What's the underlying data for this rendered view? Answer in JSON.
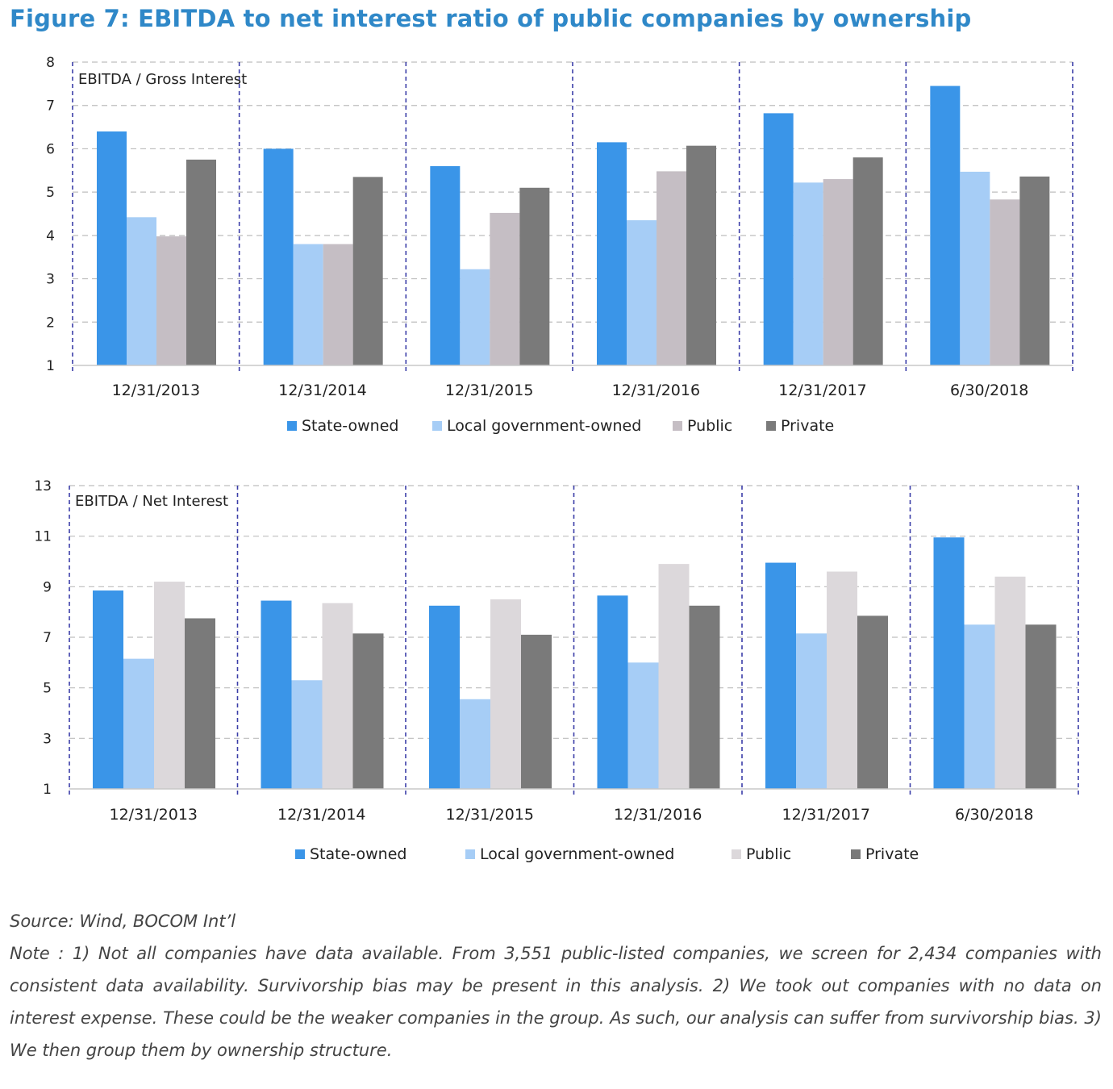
{
  "figure": {
    "title": "Figure 7: EBITDA to net interest ratio of public companies by ownership"
  },
  "colors": {
    "state_owned": "#3a95e8",
    "local_gov_owned": "#a6cdf6",
    "public_top": "#c5bec4",
    "public_bottom": "#dcd8db",
    "private": "#7a7a7a",
    "title": "#2f88c8",
    "divider": "#3b3ea8",
    "grid": "#bdbdbd"
  },
  "chart_data": [
    {
      "type": "bar",
      "inner_label": "EBITDA / Gross Interest",
      "categories": [
        "12/31/2013",
        "12/31/2014",
        "12/31/2015",
        "12/31/2016",
        "12/31/2017",
        "6/30/2018"
      ],
      "series": [
        {
          "name": "State-owned",
          "values": [
            6.4,
            6.0,
            5.6,
            6.15,
            6.82,
            7.45
          ]
        },
        {
          "name": "Local government-owned",
          "values": [
            4.42,
            3.8,
            3.22,
            4.35,
            5.22,
            5.47
          ]
        },
        {
          "name": "Public",
          "values": [
            3.98,
            3.8,
            4.52,
            5.48,
            5.3,
            4.83
          ]
        },
        {
          "name": "Private",
          "values": [
            5.75,
            5.35,
            5.1,
            6.07,
            5.8,
            5.36
          ]
        }
      ],
      "ylim": [
        1,
        8
      ],
      "yticks": [
        1,
        2,
        3,
        4,
        5,
        6,
        7,
        8
      ],
      "grid": true,
      "legend": "bottom"
    },
    {
      "type": "bar",
      "inner_label": "EBITDA / Net Interest",
      "categories": [
        "12/31/2013",
        "12/31/2014",
        "12/31/2015",
        "12/31/2016",
        "12/31/2017",
        "6/30/2018"
      ],
      "series": [
        {
          "name": "State-owned",
          "values": [
            8.85,
            8.45,
            8.25,
            8.65,
            9.95,
            10.95
          ]
        },
        {
          "name": "Local government-owned",
          "values": [
            6.15,
            5.3,
            4.55,
            6.0,
            7.15,
            7.5
          ]
        },
        {
          "name": "Public",
          "values": [
            9.2,
            8.35,
            8.5,
            9.9,
            9.6,
            9.4
          ]
        },
        {
          "name": "Private",
          "values": [
            7.75,
            7.15,
            7.1,
            8.25,
            7.85,
            7.5
          ]
        }
      ],
      "ylim": [
        1,
        13
      ],
      "yticks": [
        1,
        3,
        5,
        7,
        9,
        11,
        13
      ],
      "grid": true,
      "legend": "bottom"
    }
  ],
  "footer": {
    "source": "Source: Wind, BOCOM Int’l",
    "note": "Note : 1) Not all companies have data available. From 3,551 public-listed companies, we screen for 2,434 companies with consistent data availability. Survivorship bias may be present in this analysis. 2) We took out companies with no data on interest expense. These could be the weaker companies in the group. As such, our analysis can suffer from survivorship bias. 3) We then group them by ownership structure."
  }
}
